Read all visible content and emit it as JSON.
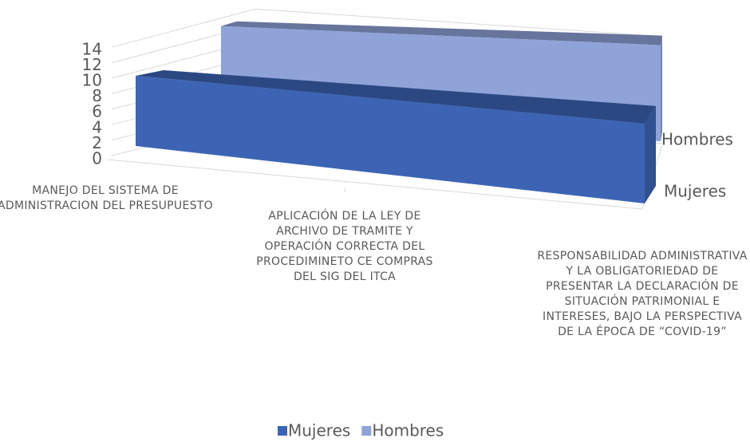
{
  "chart_data": {
    "type": "area3d",
    "categories": [
      "MANEJO DEL SISTEMA DE ADMINISTRACION DEL PRESUPUESTO",
      "APLICACIÓN DE LA LEY DE ARCHIVO DE TRAMITE Y OPERACIÓN CORRECTA DEL PROCEDIMINETO CE COMPRAS DEL SIG DEL ITCA",
      "RESPONSABILIDAD ADMINISTRATIVA Y LA OBLIGATORIEDAD DE PRESENTAR LA DECLARACIÓN DE SITUACIÓN PATRIMONIAL E INTERESES, BAJO LA PERSPECTIVA DE LA ÉPOCA DE “COVID-19”"
    ],
    "series": [
      {
        "name": "Mujeres",
        "color": "#3d64b4",
        "values": [
          11,
          11,
          11
        ]
      },
      {
        "name": "Hombres",
        "color": "#8fa3d8",
        "values": [
          14,
          14,
          14
        ]
      }
    ],
    "ylim": [
      0,
      14
    ],
    "yticks": [
      0,
      2,
      4,
      6,
      8,
      10,
      12,
      14
    ],
    "grid": true,
    "legend": "bottom"
  }
}
